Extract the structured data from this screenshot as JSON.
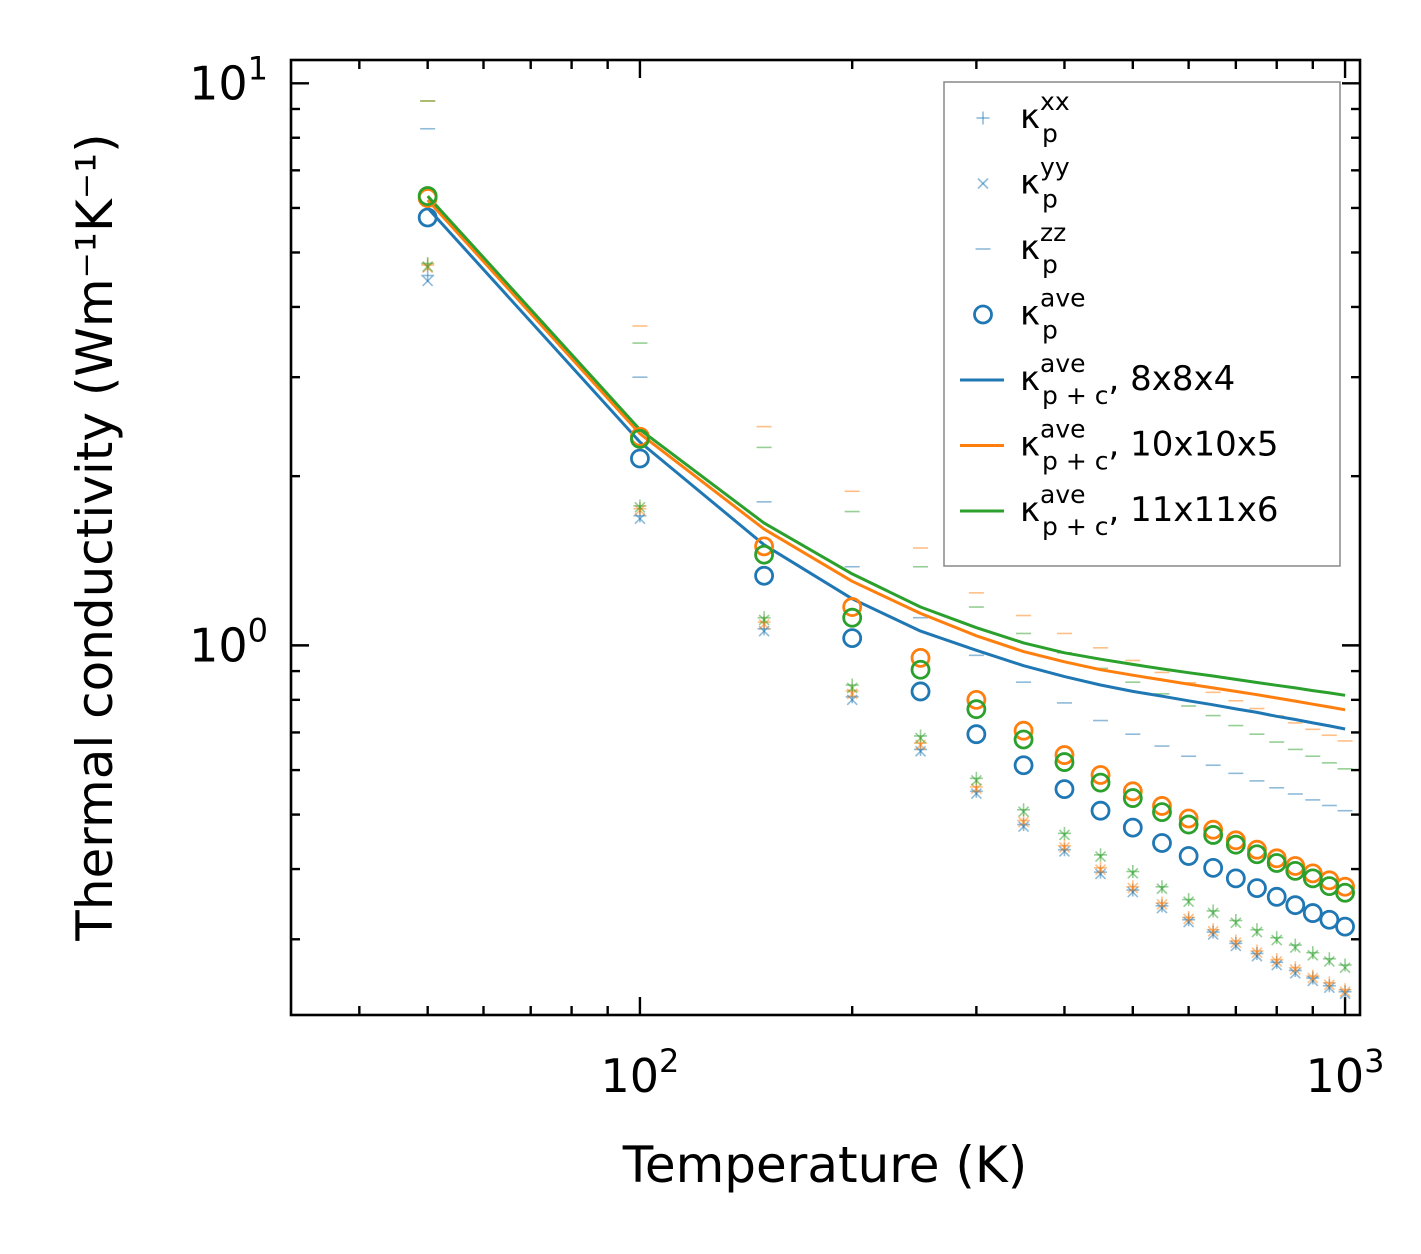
{
  "chart_data": {
    "type": "scatter",
    "title": "",
    "xlabel": "Temperature (K)",
    "ylabel": "Thermal conductivity (Wm⁻¹K⁻¹)",
    "xscale": "log",
    "yscale": "log",
    "xlim": [
      32,
      1050
    ],
    "ylim": [
      0.22,
      11
    ],
    "x_ticks": [
      {
        "value": 100,
        "base": "10",
        "exp": "2"
      },
      {
        "value": 1000,
        "base": "10",
        "exp": "3"
      }
    ],
    "y_ticks": [
      {
        "value": 1,
        "base": "10",
        "exp": "0"
      },
      {
        "value": 10,
        "base": "10",
        "exp": "1"
      }
    ],
    "legend_position": "top-right",
    "colors": {
      "c8": "#1f77b4",
      "c10": "#ff7f0e",
      "c11": "#2ca02c"
    },
    "x": [
      50,
      100,
      150,
      200,
      250,
      300,
      350,
      400,
      450,
      500,
      550,
      600,
      650,
      700,
      750,
      800,
      850,
      900,
      950,
      1000
    ],
    "legend": [
      {
        "id": "kxx",
        "marker": "plus",
        "color": "#1f77b4",
        "alpha": 0.5,
        "sym": "κ",
        "sub": "p",
        "sup": "xx",
        "suffix": ""
      },
      {
        "id": "kyy",
        "marker": "x",
        "color": "#1f77b4",
        "alpha": 0.5,
        "sym": "κ",
        "sub": "p",
        "sup": "yy",
        "suffix": ""
      },
      {
        "id": "kzz",
        "marker": "dash",
        "color": "#1f77b4",
        "alpha": 0.5,
        "sym": "κ",
        "sub": "p",
        "sup": "zz",
        "suffix": ""
      },
      {
        "id": "kave",
        "marker": "circle",
        "color": "#1f77b4",
        "alpha": 1,
        "sym": "κ",
        "sub": "p",
        "sup": "ave",
        "suffix": ""
      },
      {
        "id": "l8",
        "marker": "line",
        "color": "#1f77b4",
        "alpha": 1,
        "sym": "κ",
        "sub": "p + c",
        "sup": "ave",
        "suffix": ", 8x8x4"
      },
      {
        "id": "l10",
        "marker": "line",
        "color": "#ff7f0e",
        "alpha": 1,
        "sym": "κ",
        "sub": "p + c",
        "sup": "ave",
        "suffix": ", 10x10x5"
      },
      {
        "id": "l11",
        "marker": "line",
        "color": "#2ca02c",
        "alpha": 1,
        "sym": "κ",
        "sub": "p + c",
        "sup": "ave",
        "suffix": ", 11x11x6"
      }
    ],
    "series": [
      {
        "name": "kp_ave 8x8x4",
        "kind": "circle",
        "color": "#1f77b4",
        "values": [
          5.77,
          2.15,
          1.33,
          1.03,
          0.828,
          0.695,
          0.612,
          0.555,
          0.508,
          0.474,
          0.445,
          0.422,
          0.402,
          0.385,
          0.37,
          0.357,
          0.345,
          0.334,
          0.325,
          0.316
        ]
      },
      {
        "name": "kp_ave 10x10x5",
        "kind": "circle",
        "color": "#ff7f0e",
        "values": [
          6.25,
          2.35,
          1.5,
          1.17,
          0.95,
          0.8,
          0.705,
          0.638,
          0.588,
          0.55,
          0.518,
          0.492,
          0.47,
          0.45,
          0.433,
          0.418,
          0.405,
          0.393,
          0.382,
          0.372
        ]
      },
      {
        "name": "kp_ave 11x11x6",
        "kind": "circle",
        "color": "#2ca02c",
        "values": [
          6.3,
          2.33,
          1.45,
          1.12,
          0.905,
          0.77,
          0.68,
          0.62,
          0.57,
          0.535,
          0.505,
          0.48,
          0.46,
          0.442,
          0.425,
          0.41,
          0.397,
          0.385,
          0.373,
          0.363
        ]
      },
      {
        "name": "kp+c_ave 8x8x4",
        "kind": "line",
        "color": "#1f77b4",
        "values": [
          6.0,
          2.3,
          1.51,
          1.21,
          1.06,
          0.98,
          0.92,
          0.88,
          0.85,
          0.828,
          0.812,
          0.797,
          0.784,
          0.771,
          0.76,
          0.748,
          0.738,
          0.728,
          0.719,
          0.71
        ]
      },
      {
        "name": "kp+c_ave 10x10x5",
        "kind": "line",
        "color": "#ff7f0e",
        "values": [
          6.2,
          2.38,
          1.61,
          1.3,
          1.14,
          1.04,
          0.975,
          0.935,
          0.905,
          0.885,
          0.868,
          0.853,
          0.84,
          0.828,
          0.817,
          0.806,
          0.796,
          0.786,
          0.777,
          0.768
        ]
      },
      {
        "name": "kp+c_ave 11x11x6",
        "kind": "line",
        "color": "#2ca02c",
        "values": [
          6.3,
          2.42,
          1.65,
          1.34,
          1.17,
          1.075,
          1.01,
          0.97,
          0.945,
          0.925,
          0.908,
          0.894,
          0.882,
          0.87,
          0.859,
          0.849,
          0.84,
          0.831,
          0.823,
          0.815
        ]
      },
      {
        "name": "kp_xx 8x8x4",
        "kind": "plus",
        "color": "#1f77b4",
        "values": [
          4.55,
          1.7,
          1.07,
          0.81,
          0.653,
          0.55,
          0.48,
          0.433,
          0.395,
          0.367,
          0.344,
          0.325,
          0.309,
          0.295,
          0.283,
          0.273,
          0.264,
          0.256,
          0.248,
          0.242
        ]
      },
      {
        "name": "kp_yy 8x8x4",
        "kind": "x",
        "color": "#1f77b4",
        "values": [
          4.45,
          1.68,
          1.06,
          0.8,
          0.648,
          0.545,
          0.476,
          0.43,
          0.392,
          0.364,
          0.341,
          0.322,
          0.306,
          0.292,
          0.28,
          0.27,
          0.261,
          0.253,
          0.246,
          0.24
        ]
      },
      {
        "name": "kp_zz 8x8x4",
        "kind": "dash",
        "color": "#1f77b4",
        "values": [
          8.3,
          3.0,
          1.8,
          1.38,
          1.12,
          0.96,
          0.86,
          0.79,
          0.735,
          0.695,
          0.662,
          0.635,
          0.612,
          0.592,
          0.574,
          0.558,
          0.544,
          0.531,
          0.519,
          0.508
        ]
      },
      {
        "name": "kp_xx 10x10x5",
        "kind": "plus",
        "color": "#ff7f0e",
        "values": [
          4.75,
          1.75,
          1.1,
          0.83,
          0.67,
          0.56,
          0.488,
          0.44,
          0.402,
          0.372,
          0.348,
          0.328,
          0.312,
          0.298,
          0.286,
          0.276,
          0.267,
          0.258,
          0.251,
          0.244
        ]
      },
      {
        "name": "kp_yy 10x10x5",
        "kind": "x",
        "color": "#ff7f0e",
        "values": [
          4.7,
          1.74,
          1.09,
          0.82,
          0.665,
          0.556,
          0.485,
          0.437,
          0.399,
          0.37,
          0.346,
          0.326,
          0.31,
          0.296,
          0.284,
          0.274,
          0.265,
          0.256,
          0.249,
          0.242
        ]
      },
      {
        "name": "kp_zz 10x10x5",
        "kind": "dash",
        "color": "#ff7f0e",
        "values": [
          9.3,
          3.7,
          2.45,
          1.88,
          1.49,
          1.24,
          1.13,
          1.05,
          0.99,
          0.94,
          0.895,
          0.858,
          0.825,
          0.797,
          0.772,
          0.749,
          0.728,
          0.709,
          0.692,
          0.676
        ]
      },
      {
        "name": "kp_xx 11x11x6",
        "kind": "plus",
        "color": "#2ca02c",
        "values": [
          4.78,
          1.77,
          1.12,
          0.85,
          0.69,
          0.58,
          0.51,
          0.463,
          0.424,
          0.396,
          0.372,
          0.353,
          0.337,
          0.324,
          0.312,
          0.302,
          0.293,
          0.284,
          0.277,
          0.27
        ]
      },
      {
        "name": "kp_yy 11x11x6",
        "kind": "x",
        "color": "#2ca02c",
        "values": [
          4.72,
          1.76,
          1.11,
          0.84,
          0.684,
          0.575,
          0.506,
          0.46,
          0.421,
          0.393,
          0.369,
          0.35,
          0.334,
          0.321,
          0.309,
          0.299,
          0.29,
          0.281,
          0.274,
          0.267
        ]
      },
      {
        "name": "kp_zz 11x11x6",
        "kind": "dash",
        "color": "#2ca02c",
        "values": [
          9.3,
          3.45,
          2.25,
          1.73,
          1.38,
          1.17,
          1.05,
          0.97,
          0.91,
          0.86,
          0.82,
          0.78,
          0.75,
          0.72,
          0.695,
          0.673,
          0.653,
          0.635,
          0.618,
          0.603
        ]
      }
    ]
  }
}
